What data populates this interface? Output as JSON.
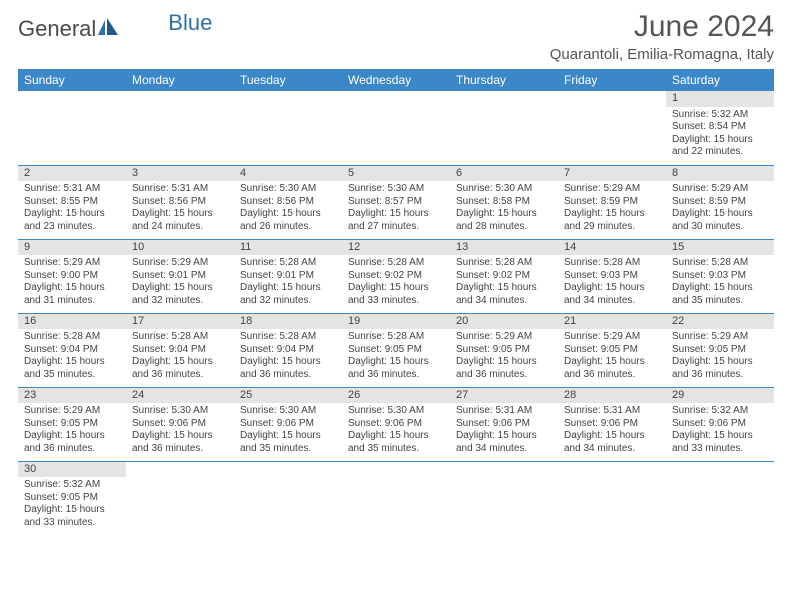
{
  "logo": {
    "part1": "General",
    "part2": "Blue"
  },
  "title": "June 2024",
  "location": "Quarantoli, Emilia-Romagna, Italy",
  "colors": {
    "header_bg": "#3b87c8",
    "header_fg": "#ffffff",
    "daynum_bg": "#e4e4e4",
    "border": "#3b87c8",
    "text": "#444444",
    "logo_gray": "#4a4a4a",
    "logo_blue": "#2f6fa7"
  },
  "day_headers": [
    "Sunday",
    "Monday",
    "Tuesday",
    "Wednesday",
    "Thursday",
    "Friday",
    "Saturday"
  ],
  "weeks": [
    [
      null,
      null,
      null,
      null,
      null,
      null,
      {
        "n": "1",
        "sr": "Sunrise: 5:32 AM",
        "ss": "Sunset: 8:54 PM",
        "d1": "Daylight: 15 hours",
        "d2": "and 22 minutes."
      }
    ],
    [
      {
        "n": "2",
        "sr": "Sunrise: 5:31 AM",
        "ss": "Sunset: 8:55 PM",
        "d1": "Daylight: 15 hours",
        "d2": "and 23 minutes."
      },
      {
        "n": "3",
        "sr": "Sunrise: 5:31 AM",
        "ss": "Sunset: 8:56 PM",
        "d1": "Daylight: 15 hours",
        "d2": "and 24 minutes."
      },
      {
        "n": "4",
        "sr": "Sunrise: 5:30 AM",
        "ss": "Sunset: 8:56 PM",
        "d1": "Daylight: 15 hours",
        "d2": "and 26 minutes."
      },
      {
        "n": "5",
        "sr": "Sunrise: 5:30 AM",
        "ss": "Sunset: 8:57 PM",
        "d1": "Daylight: 15 hours",
        "d2": "and 27 minutes."
      },
      {
        "n": "6",
        "sr": "Sunrise: 5:30 AM",
        "ss": "Sunset: 8:58 PM",
        "d1": "Daylight: 15 hours",
        "d2": "and 28 minutes."
      },
      {
        "n": "7",
        "sr": "Sunrise: 5:29 AM",
        "ss": "Sunset: 8:59 PM",
        "d1": "Daylight: 15 hours",
        "d2": "and 29 minutes."
      },
      {
        "n": "8",
        "sr": "Sunrise: 5:29 AM",
        "ss": "Sunset: 8:59 PM",
        "d1": "Daylight: 15 hours",
        "d2": "and 30 minutes."
      }
    ],
    [
      {
        "n": "9",
        "sr": "Sunrise: 5:29 AM",
        "ss": "Sunset: 9:00 PM",
        "d1": "Daylight: 15 hours",
        "d2": "and 31 minutes."
      },
      {
        "n": "10",
        "sr": "Sunrise: 5:29 AM",
        "ss": "Sunset: 9:01 PM",
        "d1": "Daylight: 15 hours",
        "d2": "and 32 minutes."
      },
      {
        "n": "11",
        "sr": "Sunrise: 5:28 AM",
        "ss": "Sunset: 9:01 PM",
        "d1": "Daylight: 15 hours",
        "d2": "and 32 minutes."
      },
      {
        "n": "12",
        "sr": "Sunrise: 5:28 AM",
        "ss": "Sunset: 9:02 PM",
        "d1": "Daylight: 15 hours",
        "d2": "and 33 minutes."
      },
      {
        "n": "13",
        "sr": "Sunrise: 5:28 AM",
        "ss": "Sunset: 9:02 PM",
        "d1": "Daylight: 15 hours",
        "d2": "and 34 minutes."
      },
      {
        "n": "14",
        "sr": "Sunrise: 5:28 AM",
        "ss": "Sunset: 9:03 PM",
        "d1": "Daylight: 15 hours",
        "d2": "and 34 minutes."
      },
      {
        "n": "15",
        "sr": "Sunrise: 5:28 AM",
        "ss": "Sunset: 9:03 PM",
        "d1": "Daylight: 15 hours",
        "d2": "and 35 minutes."
      }
    ],
    [
      {
        "n": "16",
        "sr": "Sunrise: 5:28 AM",
        "ss": "Sunset: 9:04 PM",
        "d1": "Daylight: 15 hours",
        "d2": "and 35 minutes."
      },
      {
        "n": "17",
        "sr": "Sunrise: 5:28 AM",
        "ss": "Sunset: 9:04 PM",
        "d1": "Daylight: 15 hours",
        "d2": "and 36 minutes."
      },
      {
        "n": "18",
        "sr": "Sunrise: 5:28 AM",
        "ss": "Sunset: 9:04 PM",
        "d1": "Daylight: 15 hours",
        "d2": "and 36 minutes."
      },
      {
        "n": "19",
        "sr": "Sunrise: 5:28 AM",
        "ss": "Sunset: 9:05 PM",
        "d1": "Daylight: 15 hours",
        "d2": "and 36 minutes."
      },
      {
        "n": "20",
        "sr": "Sunrise: 5:29 AM",
        "ss": "Sunset: 9:05 PM",
        "d1": "Daylight: 15 hours",
        "d2": "and 36 minutes."
      },
      {
        "n": "21",
        "sr": "Sunrise: 5:29 AM",
        "ss": "Sunset: 9:05 PM",
        "d1": "Daylight: 15 hours",
        "d2": "and 36 minutes."
      },
      {
        "n": "22",
        "sr": "Sunrise: 5:29 AM",
        "ss": "Sunset: 9:05 PM",
        "d1": "Daylight: 15 hours",
        "d2": "and 36 minutes."
      }
    ],
    [
      {
        "n": "23",
        "sr": "Sunrise: 5:29 AM",
        "ss": "Sunset: 9:05 PM",
        "d1": "Daylight: 15 hours",
        "d2": "and 36 minutes."
      },
      {
        "n": "24",
        "sr": "Sunrise: 5:30 AM",
        "ss": "Sunset: 9:06 PM",
        "d1": "Daylight: 15 hours",
        "d2": "and 36 minutes."
      },
      {
        "n": "25",
        "sr": "Sunrise: 5:30 AM",
        "ss": "Sunset: 9:06 PM",
        "d1": "Daylight: 15 hours",
        "d2": "and 35 minutes."
      },
      {
        "n": "26",
        "sr": "Sunrise: 5:30 AM",
        "ss": "Sunset: 9:06 PM",
        "d1": "Daylight: 15 hours",
        "d2": "and 35 minutes."
      },
      {
        "n": "27",
        "sr": "Sunrise: 5:31 AM",
        "ss": "Sunset: 9:06 PM",
        "d1": "Daylight: 15 hours",
        "d2": "and 34 minutes."
      },
      {
        "n": "28",
        "sr": "Sunrise: 5:31 AM",
        "ss": "Sunset: 9:06 PM",
        "d1": "Daylight: 15 hours",
        "d2": "and 34 minutes."
      },
      {
        "n": "29",
        "sr": "Sunrise: 5:32 AM",
        "ss": "Sunset: 9:06 PM",
        "d1": "Daylight: 15 hours",
        "d2": "and 33 minutes."
      }
    ],
    [
      {
        "n": "30",
        "sr": "Sunrise: 5:32 AM",
        "ss": "Sunset: 9:05 PM",
        "d1": "Daylight: 15 hours",
        "d2": "and 33 minutes."
      },
      null,
      null,
      null,
      null,
      null,
      null
    ]
  ]
}
